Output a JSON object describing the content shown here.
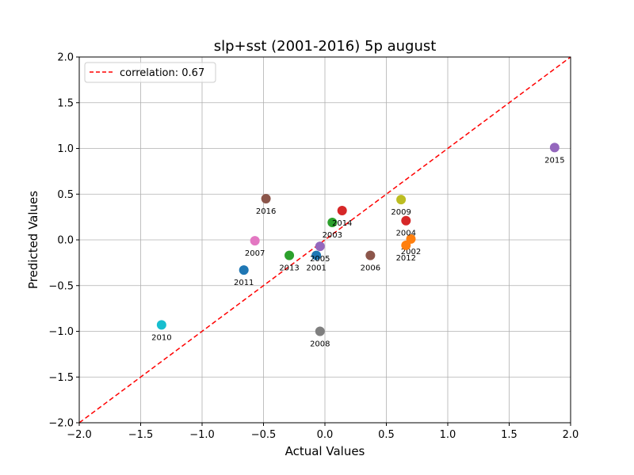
{
  "chart_data": {
    "type": "scatter",
    "title": "slp+sst (2001-2016) 5p august",
    "xlabel": "Actual Values",
    "ylabel": "Predicted Values",
    "xlim": [
      -2.0,
      2.0
    ],
    "ylim": [
      -2.0,
      2.0
    ],
    "xticks": [
      "−2.0",
      "−1.5",
      "−1.0",
      "−0.5",
      "0.0",
      "0.5",
      "1.0",
      "1.5",
      "2.0"
    ],
    "yticks": [
      "−2.0",
      "−1.5",
      "−1.0",
      "−0.5",
      "0.0",
      "0.5",
      "1.0",
      "1.5",
      "2.0"
    ],
    "grid": true,
    "legend": {
      "placement": "top-left",
      "entries": [
        "correlation: 0.67"
      ]
    },
    "reference_line": {
      "style": "dashed",
      "color": "#ff0000",
      "from": [
        -2.0,
        -2.0
      ],
      "to": [
        2.0,
        2.0
      ]
    },
    "points": [
      {
        "label": "2001",
        "x": -0.07,
        "y": -0.17,
        "color": "#1f77b4"
      },
      {
        "label": "2002",
        "x": 0.7,
        "y": 0.01,
        "color": "#ff7f0e"
      },
      {
        "label": "2003",
        "x": 0.06,
        "y": 0.19,
        "color": "#2ca02c"
      },
      {
        "label": "2004",
        "x": 0.66,
        "y": 0.21,
        "color": "#d62728"
      },
      {
        "label": "2005",
        "x": -0.04,
        "y": -0.07,
        "color": "#9467bd"
      },
      {
        "label": "2006",
        "x": 0.37,
        "y": -0.17,
        "color": "#8c564b"
      },
      {
        "label": "2007",
        "x": -0.57,
        "y": -0.01,
        "color": "#e377c2"
      },
      {
        "label": "2008",
        "x": -0.04,
        "y": -1.0,
        "color": "#7f7f7f"
      },
      {
        "label": "2009",
        "x": 0.62,
        "y": 0.44,
        "color": "#bcbd22"
      },
      {
        "label": "2010",
        "x": -1.33,
        "y": -0.93,
        "color": "#17becf"
      },
      {
        "label": "2011",
        "x": -0.66,
        "y": -0.33,
        "color": "#1f77b4"
      },
      {
        "label": "2012",
        "x": 0.66,
        "y": -0.06,
        "color": "#ff7f0e"
      },
      {
        "label": "2013",
        "x": -0.29,
        "y": -0.17,
        "color": "#2ca02c"
      },
      {
        "label": "2014",
        "x": 0.14,
        "y": 0.32,
        "color": "#d62728"
      },
      {
        "label": "2015",
        "x": 1.87,
        "y": 1.01,
        "color": "#9467bd"
      },
      {
        "label": "2016",
        "x": -0.48,
        "y": 0.45,
        "color": "#8c564b"
      }
    ]
  }
}
